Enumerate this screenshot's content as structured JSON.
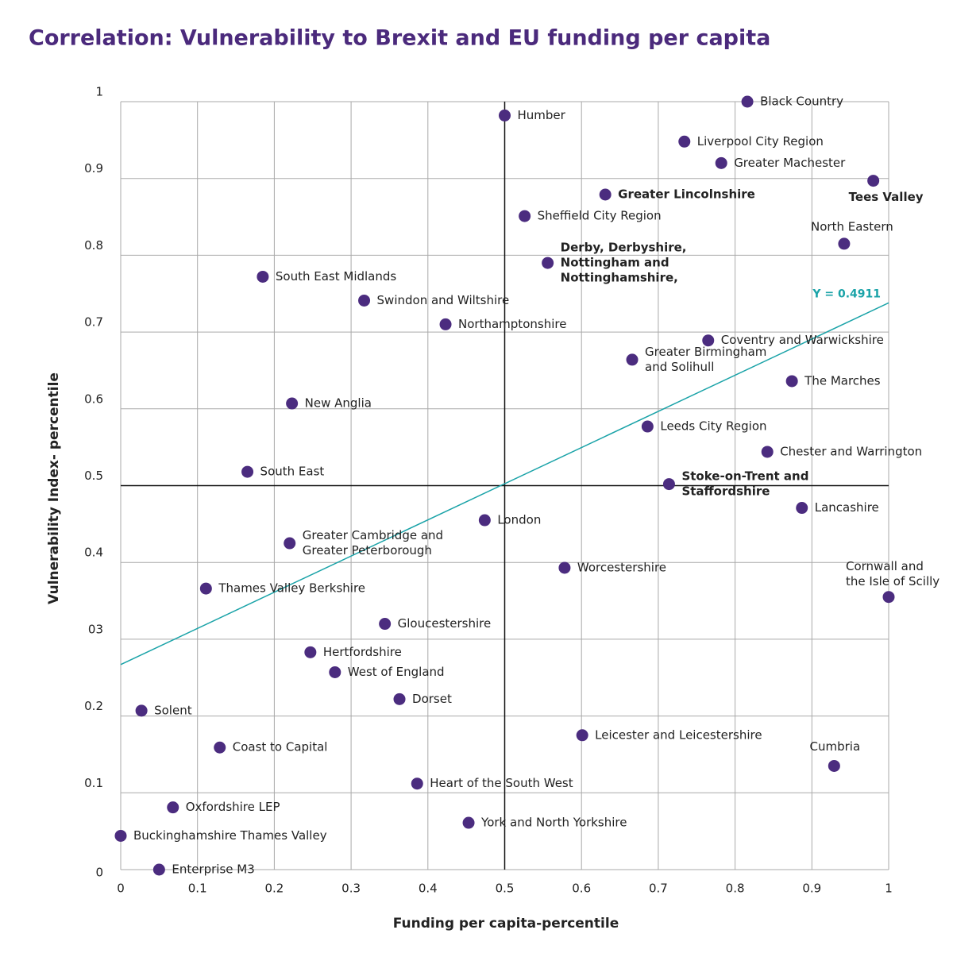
{
  "chart_data": {
    "type": "scatter",
    "title": "Correlation: Vulnerability to Brexit and EU funding per capita",
    "xlabel": "Funding per capita-percentile",
    "ylabel": "Vulnerability Index- percentile",
    "xlim": [
      0,
      1
    ],
    "ylim": [
      0,
      1
    ],
    "xticks": [
      0,
      0.1,
      0.2,
      0.3,
      0.4,
      0.5,
      0.6,
      0.7,
      0.8,
      0.9,
      1
    ],
    "yticks": [
      0,
      0.1,
      0.2,
      {
        "value": 0.3,
        "label": "03"
      },
      0.4,
      0.5,
      0.6,
      0.7,
      0.8,
      0.9,
      1
    ],
    "grid": true,
    "color": "#4b2c7f",
    "reference_lines": {
      "x": 0.5,
      "y": 0.5,
      "color": "#111111"
    },
    "trendline": {
      "x": [
        0,
        1
      ],
      "y": [
        0.267,
        0.738
      ],
      "label": "Y = 0.4911",
      "color": "#1aa3a8"
    },
    "labels": [
      "Black Country",
      "Humber",
      "Liverpool City Region",
      "Greater Machester",
      "Tees Valley",
      "Greater Lincolnshire",
      "Sheffield City Region",
      "North Eastern",
      [
        "Derby, Derbyshire,",
        "Nottingham and",
        "Nottinghamshire,"
      ],
      "South East Midlands",
      "Swindon and Wiltshire",
      "Northamptonshire",
      "Coventry and Warwickshire",
      [
        "Greater Birmingham",
        "and Solihull"
      ],
      "The Marches",
      "New Anglia",
      "Leeds City Region",
      "Chester and Warrington",
      "South East",
      [
        "Stoke-on-Trent and",
        "Staffordshire"
      ],
      "Lancashire",
      "London",
      [
        "Greater Cambridge and",
        "Greater Peterborough"
      ],
      "Worcestershire",
      [
        "Cornwall and",
        "the Isle of Scilly"
      ],
      "Thames Valley Berkshire",
      "Gloucestershire",
      "Hertfordshire",
      "West of England",
      "Dorset",
      "Solent",
      "Leicester and Leicestershire",
      "Coast to Capital",
      "Cumbria",
      "Heart of the South West",
      "Oxfordshire LEP",
      "Buckinghamshire Thames Valley",
      "York and North Yorkshire",
      "Enterprise M3"
    ],
    "x": [
      0.816,
      0.5,
      0.734,
      0.782,
      0.98,
      0.631,
      0.526,
      0.942,
      0.556,
      0.185,
      0.317,
      0.423,
      0.765,
      0.666,
      0.874,
      0.223,
      0.686,
      0.842,
      0.165,
      0.714,
      0.887,
      0.474,
      0.22,
      0.578,
      1.0,
      0.111,
      0.344,
      0.247,
      0.279,
      0.363,
      0.027,
      0.601,
      0.129,
      0.929,
      0.386,
      0.068,
      0,
      0.453,
      0.05
    ],
    "y": [
      1.0,
      0.982,
      0.948,
      0.92,
      0.897,
      0.879,
      0.851,
      0.815,
      0.79,
      0.772,
      0.741,
      0.71,
      0.689,
      0.664,
      0.636,
      0.607,
      0.577,
      0.544,
      0.518,
      0.502,
      0.471,
      0.455,
      0.425,
      0.393,
      0.355,
      0.366,
      0.32,
      0.283,
      0.257,
      0.222,
      0.207,
      0.175,
      0.159,
      0.135,
      0.112,
      0.081,
      0.044,
      0.061,
      0
    ],
    "bold": [
      false,
      false,
      false,
      false,
      true,
      true,
      false,
      false,
      true,
      false,
      false,
      false,
      false,
      false,
      false,
      false,
      false,
      false,
      false,
      true,
      false,
      false,
      false,
      false,
      false,
      false,
      false,
      false,
      false,
      false,
      false,
      false,
      false,
      false,
      false,
      false,
      false,
      false,
      false
    ]
  }
}
